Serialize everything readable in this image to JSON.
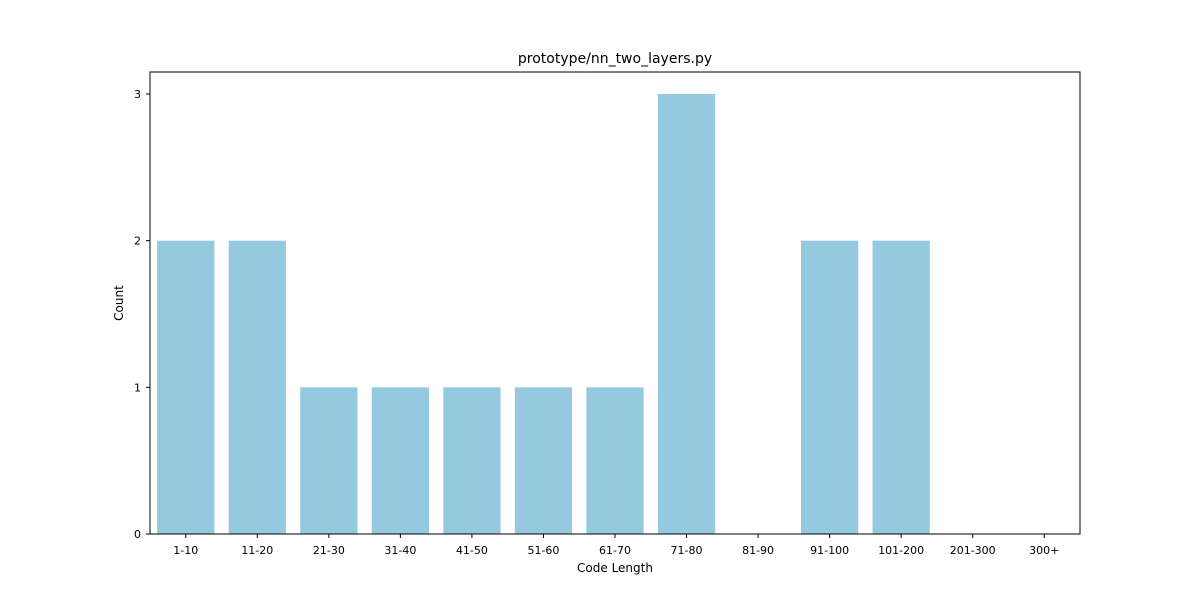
{
  "chart_data": {
    "type": "bar",
    "title": "prototype/nn_two_layers.py",
    "xlabel": "Code Length",
    "ylabel": "Count",
    "categories": [
      "1-10",
      "11-20",
      "21-30",
      "31-40",
      "41-50",
      "51-60",
      "61-70",
      "71-80",
      "81-90",
      "91-100",
      "101-200",
      "201-300",
      "300+"
    ],
    "values": [
      2,
      2,
      1,
      1,
      1,
      1,
      1,
      3,
      0,
      2,
      2,
      0,
      0
    ],
    "ylim": [
      0,
      3.15
    ],
    "yticks": [
      0,
      1,
      2,
      3
    ],
    "grid": false,
    "bar_color": "#95c9df"
  }
}
